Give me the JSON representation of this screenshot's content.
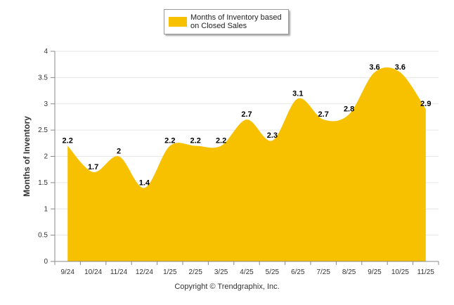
{
  "colors": {
    "area": "#F7C100",
    "grid": "#e6e6e6",
    "axis": "#888888",
    "text": "#333333"
  },
  "legend": {
    "label": "Months of Inventory based on Closed Sales",
    "swatch_color": "#F7C100"
  },
  "copyright": "Copyright © Trendgraphix, Inc.",
  "chart_data": {
    "type": "area",
    "title": "",
    "xlabel": "",
    "ylabel": "Months of Inventory",
    "ylim": [
      0,
      4
    ],
    "yticks": [
      "0",
      "0.5",
      "1",
      "1.5",
      "2",
      "2.5",
      "3",
      "3.5",
      "4"
    ],
    "grid": true,
    "legend_position": "top-center",
    "categories": [
      "9/24",
      "10/24",
      "11/24",
      "12/24",
      "1/25",
      "2/25",
      "3/25",
      "4/25",
      "5/25",
      "6/25",
      "7/25",
      "8/25",
      "9/25",
      "10/25",
      "11/25"
    ],
    "series": [
      {
        "name": "Months of Inventory based on Closed Sales",
        "values": [
          2.2,
          1.7,
          2,
          1.4,
          2.2,
          2.2,
          2.2,
          2.7,
          2.3,
          3.1,
          2.7,
          2.8,
          3.6,
          3.6,
          2.9
        ],
        "labels": [
          "2.2",
          "1.7",
          "2",
          "1.4",
          "2.2",
          "2.2",
          "2.2",
          "2.7",
          "2.3",
          "3.1",
          "2.7",
          "2.8",
          "3.6",
          "3.6",
          "2.9"
        ]
      }
    ]
  }
}
